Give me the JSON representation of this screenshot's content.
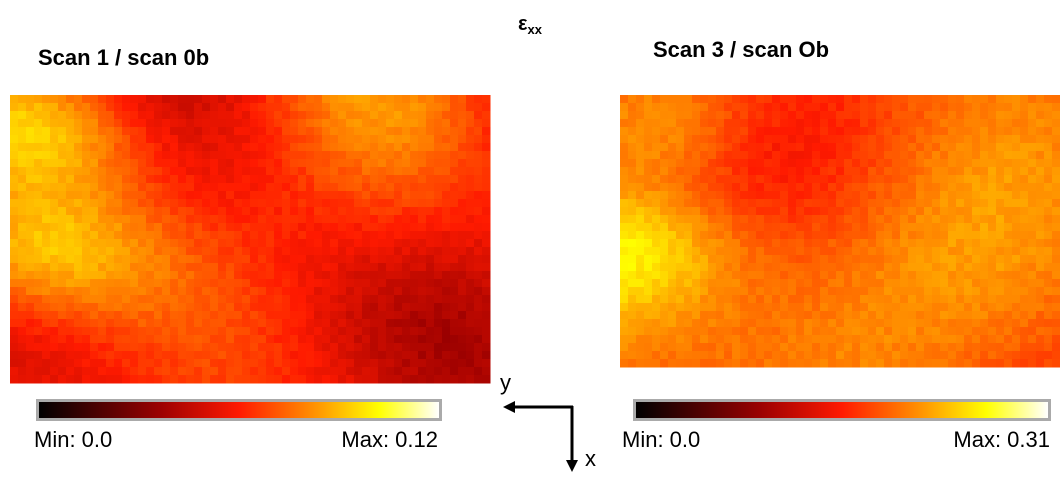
{
  "title": {
    "symbol": "ε",
    "subscript": "xx"
  },
  "panels": [
    {
      "title": "Scan 1 / scan 0b",
      "colorbar": {
        "min_label": "Min: 0.0",
        "max_label": "Max: 0.12"
      }
    },
    {
      "title": "Scan 3 / scan Ob",
      "colorbar": {
        "min_label": "Min: 0.0",
        "max_label": "Max: 0.31"
      }
    }
  ],
  "axes": {
    "y_label": "y",
    "x_label": "x"
  }
}
